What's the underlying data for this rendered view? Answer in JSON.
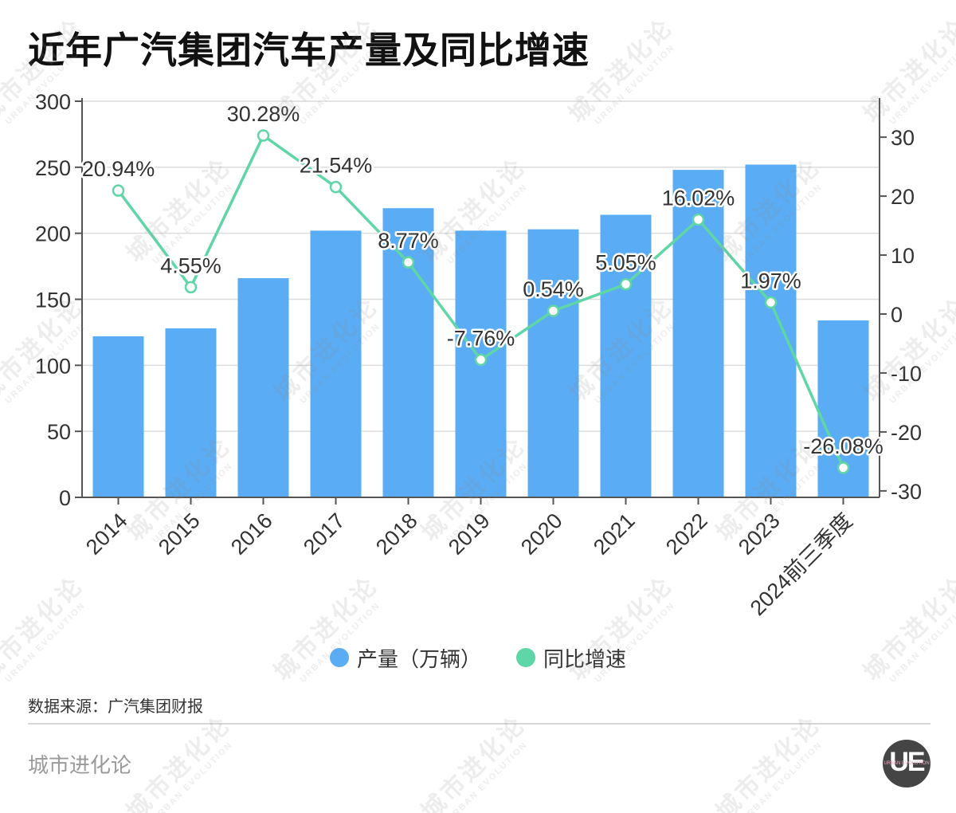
{
  "chart_data": {
    "type": "bar",
    "title": "近年广汽集团汽车产量及同比增速",
    "categories": [
      "2014",
      "2015",
      "2016",
      "2017",
      "2018",
      "2019",
      "2020",
      "2021",
      "2022",
      "2023",
      "2024前三季度"
    ],
    "series": [
      {
        "name": "产量（万辆）",
        "type": "bar",
        "axis": "left",
        "color": "#5aacf4",
        "values": [
          122,
          128,
          166,
          202,
          219,
          202,
          203,
          214,
          248,
          252,
          134
        ]
      },
      {
        "name": "同比增速",
        "type": "line",
        "axis": "right",
        "color": "#5fd6a6",
        "values": [
          20.94,
          4.55,
          30.28,
          21.54,
          8.77,
          -7.76,
          0.54,
          5.05,
          16.02,
          1.97,
          -26.08
        ],
        "labels": [
          "20.94%",
          "4.55%",
          "30.28%",
          "21.54%",
          "8.77%",
          "-7.76%",
          "0.54%",
          "5.05%",
          "16.02%",
          "1.97%",
          "-26.08%"
        ]
      }
    ],
    "ylim": [
      0,
      300
    ],
    "y_ticks": [
      0,
      50,
      100,
      150,
      200,
      250,
      300
    ],
    "y2lim": [
      -31.1,
      36.1
    ],
    "y2_ticks": [
      -30,
      -20,
      -10,
      0,
      10,
      20,
      30
    ],
    "grid": true,
    "legend_position": "bottom"
  },
  "source": "数据来源：广汽集团财报",
  "footer_brand": "城市进化论",
  "logo": {
    "mark": "UE",
    "tagline": "URBAN EVOLUTION"
  },
  "watermark": {
    "cn": "城市进化论",
    "en": "URBAN EVOLUTION"
  }
}
